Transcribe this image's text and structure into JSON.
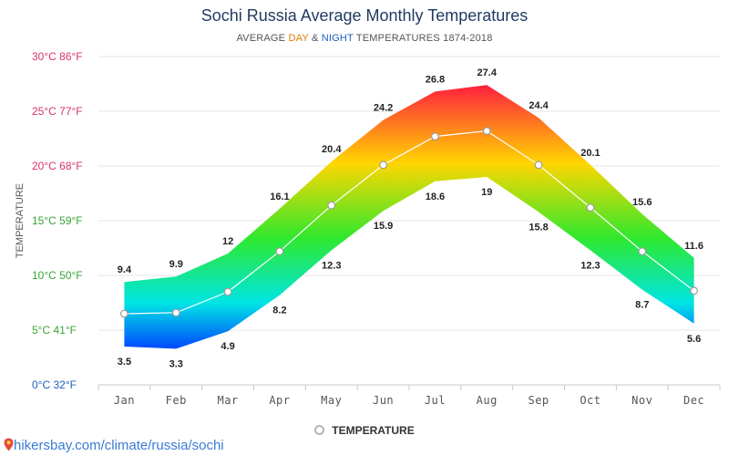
{
  "header": {
    "title": "Sochi Russia Average Monthly Temperatures",
    "subtitle_prefix": "AVERAGE ",
    "subtitle_day": "DAY",
    "subtitle_amp": " & ",
    "subtitle_night": "NIGHT",
    "subtitle_suffix": " TEMPERATURES 1874-2018"
  },
  "legend": {
    "label": "TEMPERATURE",
    "icon": "circle-marker-icon"
  },
  "source": {
    "icon": "map-pin-icon",
    "text": "hikersbay.com/climate/russia/sochi"
  },
  "chart_data": {
    "type": "area",
    "categories": [
      "Jan",
      "Feb",
      "Mar",
      "Apr",
      "May",
      "Jun",
      "Jul",
      "Aug",
      "Sep",
      "Oct",
      "Nov",
      "Dec"
    ],
    "series": [
      {
        "name": "DAY",
        "values": [
          9.4,
          9.9,
          12,
          16.1,
          20.4,
          24.2,
          26.8,
          27.4,
          24.4,
          20.1,
          15.6,
          11.6
        ]
      },
      {
        "name": "NIGHT",
        "values": [
          3.5,
          3.3,
          4.9,
          8.2,
          12.3,
          15.9,
          18.6,
          19,
          15.8,
          12.3,
          8.7,
          5.6
        ]
      },
      {
        "name": "TEMPERATURE",
        "values": [
          6.5,
          6.6,
          8.5,
          12.2,
          16.4,
          20.1,
          22.7,
          23.2,
          20.1,
          16.2,
          12.2,
          8.6
        ]
      }
    ],
    "day_labels": [
      "9.4",
      "9.9",
      "12",
      "16.1",
      "20.4",
      "24.2",
      "26.8",
      "27.4",
      "24.4",
      "20.1",
      "15.6",
      "11.6"
    ],
    "night_labels": [
      "3.5",
      "3.3",
      "4.9",
      "8.2",
      "12.3",
      "15.9",
      "18.6",
      "19",
      "15.8",
      "12.3",
      "8.7",
      "5.6"
    ],
    "ylabel": "TEMPERATURE",
    "ylim": [
      0,
      30
    ],
    "yticks": [
      0,
      5,
      10,
      15,
      20,
      25,
      30
    ],
    "ytick_labels": [
      "0°C 32°F",
      "5°C 41°F",
      "10°C 50°F",
      "15°C 59°F",
      "20°C 68°F",
      "25°C 77°F",
      "30°C 86°F"
    ],
    "ytick_colors": [
      "#1f5fbf",
      "#3aa336",
      "#3aa336",
      "#3aa336",
      "#d6336c",
      "#d6336c",
      "#d6336c"
    ],
    "grid": true,
    "legend_position": "bottom-center",
    "colors": {
      "hot": "#ff1a40",
      "warm": "#ffd600",
      "mild": "#2ee82e",
      "cool": "#00e5e5",
      "cold": "#0040ff",
      "line": "#ffffff",
      "marker_stroke": "#9a9a9a"
    }
  }
}
